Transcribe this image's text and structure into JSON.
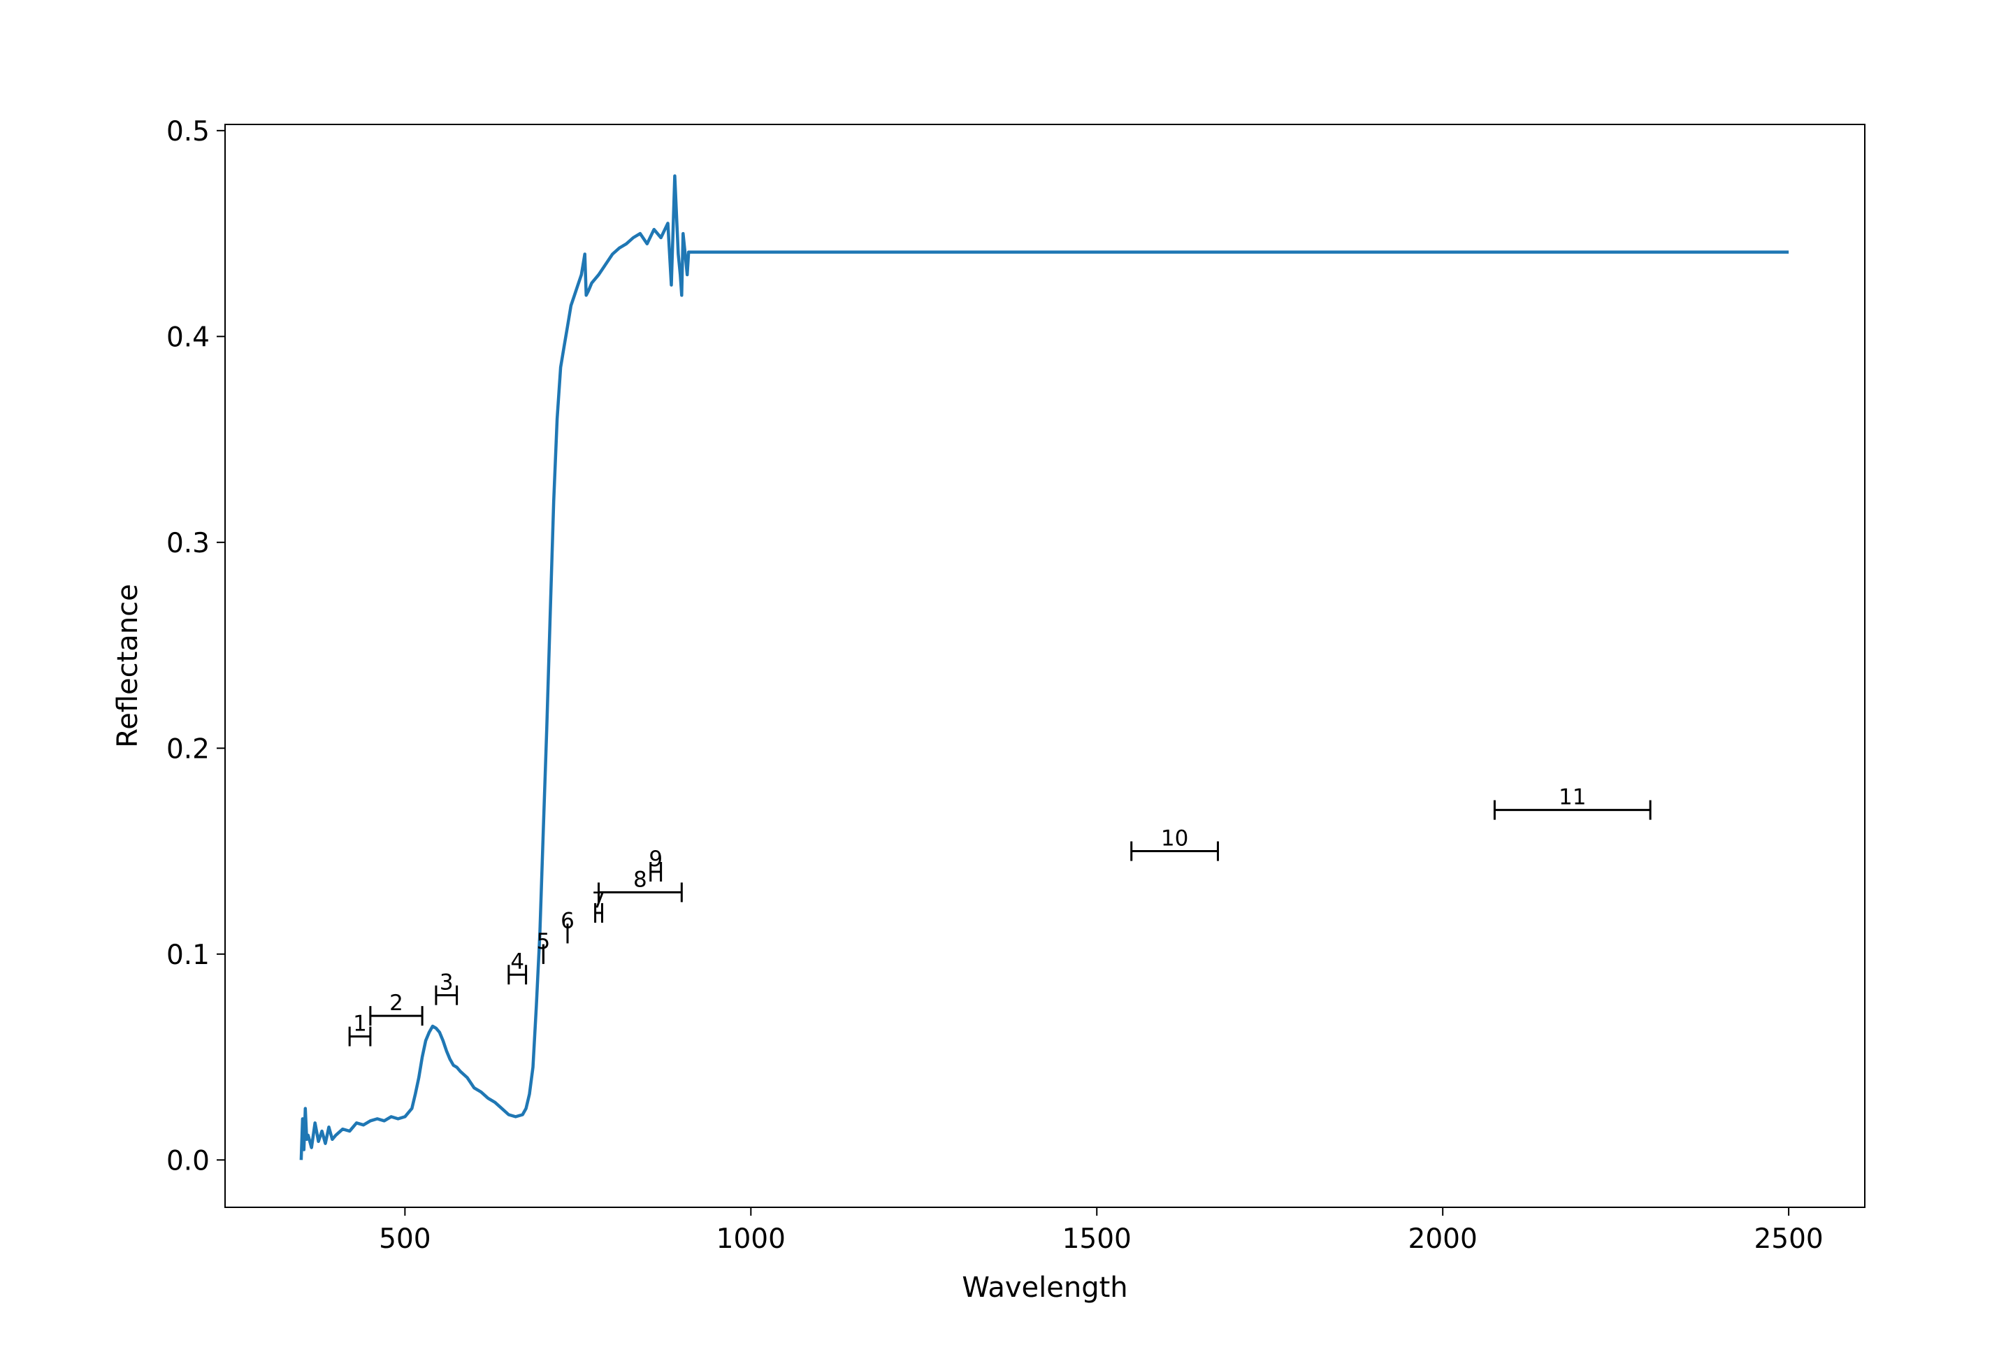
{
  "chart_data": {
    "type": "line",
    "title": "",
    "xlabel": "Wavelength",
    "ylabel": "Reflectance",
    "xlim": [
      240,
      2610
    ],
    "ylim": [
      -0.023,
      0.503
    ],
    "xticks": [
      500,
      1000,
      1500,
      2000,
      2500
    ],
    "yticks": [
      0.0,
      0.1,
      0.2,
      0.3,
      0.4,
      0.5
    ],
    "xtick_labels": [
      "500",
      "1000",
      "1500",
      "2000",
      "2500"
    ],
    "ytick_labels": [
      "0.0",
      "0.1",
      "0.2",
      "0.3",
      "0.4",
      "0.5"
    ],
    "grid": false,
    "legend": null,
    "series": [
      {
        "color": "#1f77b4",
        "x": [
          350,
          352,
          354,
          356,
          358,
          360,
          365,
          370,
          375,
          380,
          385,
          390,
          395,
          400,
          410,
          420,
          430,
          440,
          450,
          460,
          470,
          480,
          490,
          500,
          510,
          515,
          520,
          525,
          530,
          535,
          540,
          545,
          550,
          555,
          560,
          565,
          570,
          575,
          580,
          590,
          600,
          610,
          620,
          630,
          640,
          650,
          660,
          670,
          675,
          680,
          685,
          690,
          695,
          700,
          705,
          710,
          715,
          720,
          725,
          730,
          735,
          740,
          745,
          750,
          755,
          760,
          762,
          765,
          770,
          780,
          790,
          800,
          810,
          820,
          830,
          840,
          850,
          860,
          870,
          880,
          885,
          890,
          895,
          898,
          900,
          902,
          905,
          908,
          910,
          2500
        ],
        "y": [
          0.0,
          0.02,
          0.005,
          0.025,
          0.01,
          0.012,
          0.006,
          0.018,
          0.009,
          0.014,
          0.008,
          0.016,
          0.01,
          0.012,
          0.015,
          0.014,
          0.018,
          0.017,
          0.019,
          0.02,
          0.019,
          0.021,
          0.02,
          0.021,
          0.025,
          0.032,
          0.04,
          0.05,
          0.058,
          0.062,
          0.065,
          0.064,
          0.062,
          0.058,
          0.053,
          0.049,
          0.046,
          0.045,
          0.043,
          0.04,
          0.035,
          0.033,
          0.03,
          0.028,
          0.025,
          0.022,
          0.021,
          0.022,
          0.025,
          0.032,
          0.045,
          0.075,
          0.11,
          0.16,
          0.21,
          0.265,
          0.32,
          0.36,
          0.385,
          0.395,
          0.405,
          0.415,
          0.42,
          0.425,
          0.43,
          0.44,
          0.42,
          0.422,
          0.426,
          0.43,
          0.435,
          0.44,
          0.443,
          0.445,
          0.448,
          0.45,
          0.445,
          0.452,
          0.448,
          0.455,
          0.425,
          0.478,
          0.44,
          0.43,
          0.42,
          0.45,
          0.44,
          0.43,
          0.441,
          0.441
        ]
      }
    ],
    "bands": [
      {
        "label": "1",
        "start": 420,
        "end": 450,
        "y": 0.06
      },
      {
        "label": "2",
        "start": 450,
        "end": 525,
        "y": 0.07
      },
      {
        "label": "3",
        "start": 545,
        "end": 575,
        "y": 0.08
      },
      {
        "label": "4",
        "start": 650,
        "end": 675,
        "y": 0.09
      },
      {
        "label": "5",
        "start": 700,
        "end": 700,
        "y": 0.1
      },
      {
        "label": "6",
        "start": 735,
        "end": 735,
        "y": 0.11
      },
      {
        "label": "7",
        "start": 775,
        "end": 785,
        "y": 0.12
      },
      {
        "label": "8",
        "start": 780,
        "end": 900,
        "y": 0.13
      },
      {
        "label": "9",
        "start": 855,
        "end": 870,
        "y": 0.14
      },
      {
        "label": "10",
        "start": 1550,
        "end": 1675,
        "y": 0.15
      },
      {
        "label": "11",
        "start": 2075,
        "end": 2300,
        "y": 0.17
      }
    ]
  }
}
